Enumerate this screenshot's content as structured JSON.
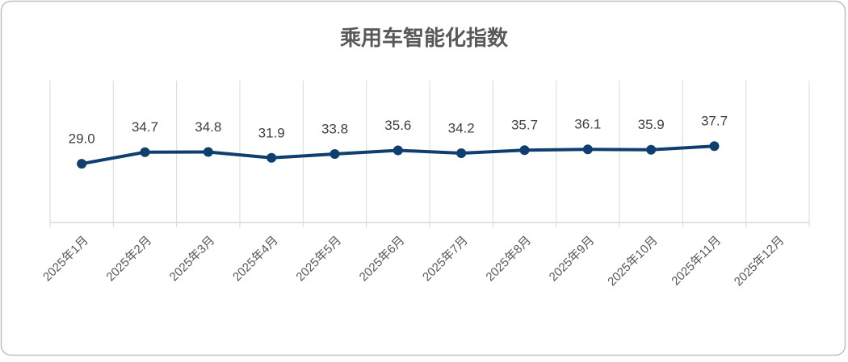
{
  "chart_data": {
    "type": "line",
    "title": "乘用车智能化指数",
    "categories": [
      "2025年1月",
      "2025年2月",
      "2025年3月",
      "2025年4月",
      "2025年5月",
      "2025年6月",
      "2025年7月",
      "2025年8月",
      "2025年9月",
      "2025年10月",
      "2025年11月",
      "2025年12月"
    ],
    "series": [
      {
        "name": "乘用车智能化指数",
        "color": "#0f3f6e",
        "values": [
          29.0,
          34.7,
          34.8,
          31.9,
          33.8,
          35.6,
          34.2,
          35.7,
          36.1,
          35.9,
          37.7,
          null
        ],
        "value_labels": [
          "29.0",
          "34.7",
          "34.8",
          "31.9",
          "33.8",
          "35.6",
          "34.2",
          "35.7",
          "36.1",
          "35.9",
          "37.7",
          null
        ]
      }
    ],
    "ylim": [
      0,
      70
    ],
    "grid": true
  }
}
